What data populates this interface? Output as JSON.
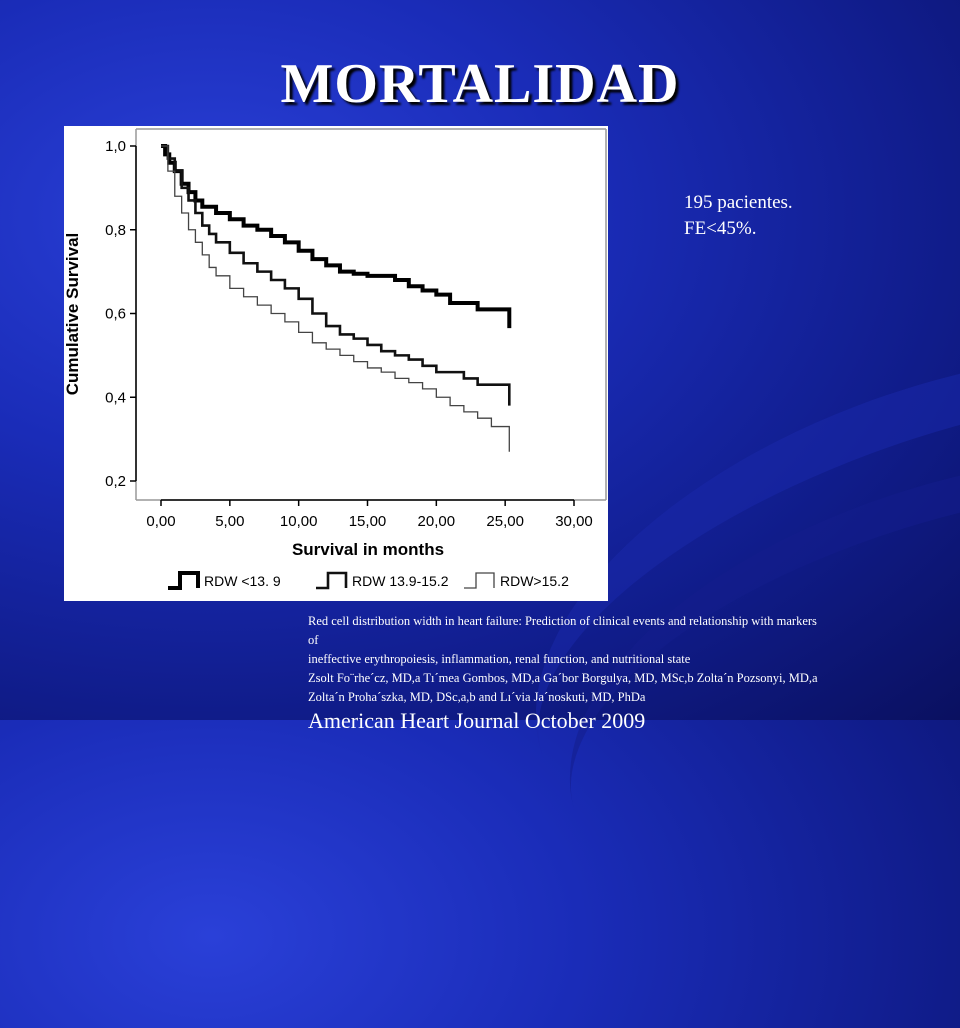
{
  "slide": {
    "title": "MORTALIDAD",
    "note_lines": [
      "195 pacientes.",
      "FE<45%."
    ],
    "citation_lines": [
      "Red cell distribution width in heart failure: Prediction of clinical events and relationship with markers",
      "of",
      "ineffective erythropoiesis, inflammation, renal function, and nutritional state",
      "Zsolt Fo¨rhe´cz, MD,a Tı´mea Gombos, MD,a Ga´bor Borgulya, MD, MSc,b Zolta´n Pozsonyi, MD,a",
      "Zolta´n Proha´szka, MD, DSc,a,b and Lı´via Ja´noskuti, MD, PhDa"
    ],
    "journal": "American Heart Journal October 2009"
  },
  "chart_data": {
    "type": "line",
    "subtype": "step (Kaplan-Meier)",
    "title": "",
    "xlabel": "Survival in months",
    "ylabel": "Cumulative Survival",
    "xlim": [
      0,
      30
    ],
    "ylim": [
      0.2,
      1.0
    ],
    "xticks": [
      "0,00",
      "5,00",
      "10,00",
      "15,00",
      "20,00",
      "25,00",
      "30,00"
    ],
    "yticks": [
      "1,0",
      "0,8",
      "0,6",
      "0,4",
      "0,2"
    ],
    "grid": false,
    "legend_position": "bottom",
    "series": [
      {
        "name": "RDW <13. 9",
        "x": [
          0,
          0.3,
          0.6,
          1,
          1.5,
          2,
          2.5,
          3,
          4,
          5,
          6,
          7,
          8,
          9,
          10,
          11,
          12,
          13,
          14,
          15,
          17,
          18,
          19,
          20,
          21,
          23,
          25.3,
          25.3
        ],
        "y": [
          1.0,
          0.98,
          0.96,
          0.94,
          0.91,
          0.89,
          0.87,
          0.855,
          0.84,
          0.825,
          0.81,
          0.8,
          0.785,
          0.77,
          0.75,
          0.73,
          0.715,
          0.7,
          0.695,
          0.69,
          0.68,
          0.665,
          0.655,
          0.645,
          0.625,
          0.61,
          0.595,
          0.565
        ]
      },
      {
        "name": "RDW 13.9-15.2",
        "x": [
          0,
          0.5,
          1,
          1.5,
          2,
          2.5,
          3,
          3.5,
          4,
          5,
          6,
          7,
          8,
          9,
          10,
          11,
          12,
          13,
          14,
          15,
          16,
          17,
          18,
          19,
          20,
          22,
          23,
          25.3,
          25.3
        ],
        "y": [
          1.0,
          0.97,
          0.94,
          0.9,
          0.87,
          0.84,
          0.81,
          0.79,
          0.77,
          0.745,
          0.72,
          0.7,
          0.68,
          0.66,
          0.635,
          0.6,
          0.57,
          0.55,
          0.54,
          0.525,
          0.51,
          0.5,
          0.49,
          0.475,
          0.46,
          0.445,
          0.43,
          0.43,
          0.38
        ]
      },
      {
        "name": "RDW>15.2",
        "x": [
          0,
          0.5,
          1,
          1.5,
          2,
          2.5,
          3,
          3.5,
          4,
          5,
          6,
          7,
          8,
          9,
          10,
          11,
          12,
          13,
          14,
          15,
          16,
          17,
          18,
          19,
          20,
          21,
          22,
          23,
          24,
          25.3,
          25.3
        ],
        "y": [
          1.0,
          0.94,
          0.88,
          0.84,
          0.8,
          0.77,
          0.74,
          0.71,
          0.69,
          0.66,
          0.64,
          0.62,
          0.6,
          0.58,
          0.555,
          0.53,
          0.515,
          0.5,
          0.485,
          0.47,
          0.46,
          0.445,
          0.435,
          0.42,
          0.4,
          0.38,
          0.365,
          0.35,
          0.33,
          0.32,
          0.27
        ]
      }
    ]
  },
  "colors": {
    "series": [
      "#000000",
      "#111111",
      "#444444"
    ],
    "text": "#ffffff",
    "chart_background": "#ffffff"
  }
}
